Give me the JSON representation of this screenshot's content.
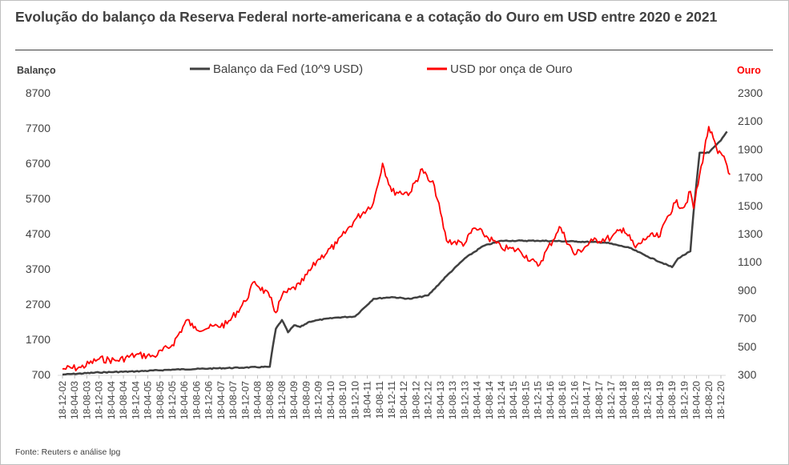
{
  "title": "Evolução do balanço da Reserva Federal norte-americana e a cotação do Ouro em USD entre 2020 e 2021",
  "source": "Fonte: Reuters e análise lpg",
  "colors": {
    "fed": "#404040",
    "gold": "#ff0000",
    "text": "#404040"
  },
  "chart_data": {
    "type": "line",
    "title": "Evolução do balanço da Reserva Federal norte-americana e a cotação do Ouro em USD entre 2020 e 2021",
    "left_axis_label": "Balanço",
    "right_axis_label": "Ouro",
    "left_ylim": [
      700,
      8700
    ],
    "right_ylim": [
      300,
      2300
    ],
    "left_ticks": [
      "700",
      "1700",
      "2700",
      "3700",
      "4700",
      "5700",
      "6700",
      "7700",
      "8700"
    ],
    "right_ticks": [
      "300",
      "500",
      "700",
      "900",
      "1100",
      "1300",
      "1500",
      "1700",
      "1900",
      "2100",
      "2300"
    ],
    "x_tick_labels": [
      "18-12-02",
      "18-04-03",
      "18-08-03",
      "18-12-03",
      "18-04-04",
      "18-08-04",
      "18-12-04",
      "18-04-05",
      "18-08-05",
      "18-12-05",
      "18-04-06",
      "18-08-06",
      "18-12-06",
      "18-04-07",
      "18-08-07",
      "18-12-07",
      "18-04-08",
      "18-08-08",
      "18-12-08",
      "18-04-09",
      "18-08-09",
      "18-12-09",
      "18-04-10",
      "18-08-10",
      "18-12-10",
      "18-04-11",
      "18-08-11",
      "18-12-11",
      "18-04-12",
      "18-08-12",
      "18-12-12",
      "18-04-13",
      "18-08-13",
      "18-12-13",
      "18-04-14",
      "18-08-14",
      "18-12-14",
      "18-04-15",
      "18-08-15",
      "18-12-15",
      "18-04-16",
      "18-08-16",
      "18-12-16",
      "18-04-17",
      "18-08-17",
      "18-12-17",
      "18-04-18",
      "18-08-18",
      "18-12-18",
      "18-04-19",
      "18-08-19",
      "18-12-19",
      "18-04-20",
      "18-08-20",
      "18-12-20"
    ],
    "legend": [
      "Balanço da Fed (10^9 USD)",
      "USD por onça de Ouro"
    ],
    "legend_position": "top-center",
    "grid": false,
    "series": [
      {
        "name": "Balanço da Fed (10^9 USD)",
        "axis": "left",
        "points": [
          [
            "2002-12",
            700
          ],
          [
            "2003-12",
            760
          ],
          [
            "2004-12",
            790
          ],
          [
            "2005-12",
            840
          ],
          [
            "2006-12",
            870
          ],
          [
            "2007-12",
            900
          ],
          [
            "2008-08",
            920
          ],
          [
            "2008-09",
            1500
          ],
          [
            "2008-10",
            2000
          ],
          [
            "2008-12",
            2250
          ],
          [
            "2009-02",
            1900
          ],
          [
            "2009-04",
            2100
          ],
          [
            "2009-06",
            2050
          ],
          [
            "2009-09",
            2200
          ],
          [
            "2009-12",
            2250
          ],
          [
            "2010-06",
            2320
          ],
          [
            "2010-12",
            2350
          ],
          [
            "2011-03",
            2600
          ],
          [
            "2011-06",
            2850
          ],
          [
            "2011-12",
            2900
          ],
          [
            "2012-06",
            2850
          ],
          [
            "2012-12",
            2950
          ],
          [
            "2013-06",
            3500
          ],
          [
            "2013-12",
            4000
          ],
          [
            "2014-06",
            4350
          ],
          [
            "2014-12",
            4500
          ],
          [
            "2015-12",
            4500
          ],
          [
            "2016-12",
            4480
          ],
          [
            "2017-10",
            4450
          ],
          [
            "2018-06",
            4300
          ],
          [
            "2018-12",
            4050
          ],
          [
            "2019-08",
            3750
          ],
          [
            "2019-10",
            4000
          ],
          [
            "2020-02",
            4200
          ],
          [
            "2020-03",
            5300
          ],
          [
            "2020-05",
            7000
          ],
          [
            "2020-08",
            7000
          ],
          [
            "2020-12",
            7350
          ],
          [
            "2021-02",
            7600
          ]
        ]
      },
      {
        "name": "USD por onça de Ouro",
        "axis": "right",
        "points": [
          [
            "2002-12",
            340
          ],
          [
            "2003-06",
            350
          ],
          [
            "2003-12",
            410
          ],
          [
            "2004-06",
            400
          ],
          [
            "2004-12",
            440
          ],
          [
            "2005-06",
            430
          ],
          [
            "2005-12",
            510
          ],
          [
            "2006-05",
            690
          ],
          [
            "2006-07",
            630
          ],
          [
            "2006-12",
            630
          ],
          [
            "2007-06",
            660
          ],
          [
            "2007-12",
            820
          ],
          [
            "2008-03",
            960
          ],
          [
            "2008-08",
            850
          ],
          [
            "2008-10",
            740
          ],
          [
            "2008-12",
            860
          ],
          [
            "2009-06",
            940
          ],
          [
            "2009-12",
            1120
          ],
          [
            "2010-06",
            1230
          ],
          [
            "2010-12",
            1400
          ],
          [
            "2011-06",
            1520
          ],
          [
            "2011-09",
            1800
          ],
          [
            "2011-12",
            1600
          ],
          [
            "2012-06",
            1590
          ],
          [
            "2012-10",
            1760
          ],
          [
            "2012-12",
            1680
          ],
          [
            "2013-02",
            1640
          ],
          [
            "2013-06",
            1250
          ],
          [
            "2013-12",
            1230
          ],
          [
            "2014-03",
            1340
          ],
          [
            "2014-06",
            1300
          ],
          [
            "2014-12",
            1200
          ],
          [
            "2015-06",
            1180
          ],
          [
            "2015-12",
            1070
          ],
          [
            "2016-06",
            1300
          ],
          [
            "2016-07",
            1350
          ],
          [
            "2016-12",
            1150
          ],
          [
            "2017-06",
            1250
          ],
          [
            "2017-12",
            1270
          ],
          [
            "2018-04",
            1340
          ],
          [
            "2018-08",
            1200
          ],
          [
            "2018-12",
            1280
          ],
          [
            "2019-04",
            1280
          ],
          [
            "2019-06",
            1400
          ],
          [
            "2019-09",
            1520
          ],
          [
            "2019-12",
            1490
          ],
          [
            "2020-02",
            1600
          ],
          [
            "2020-03",
            1480
          ],
          [
            "2020-08",
            2060
          ],
          [
            "2020-11",
            1870
          ],
          [
            "2021-01",
            1850
          ],
          [
            "2021-03",
            1720
          ]
        ]
      }
    ]
  }
}
